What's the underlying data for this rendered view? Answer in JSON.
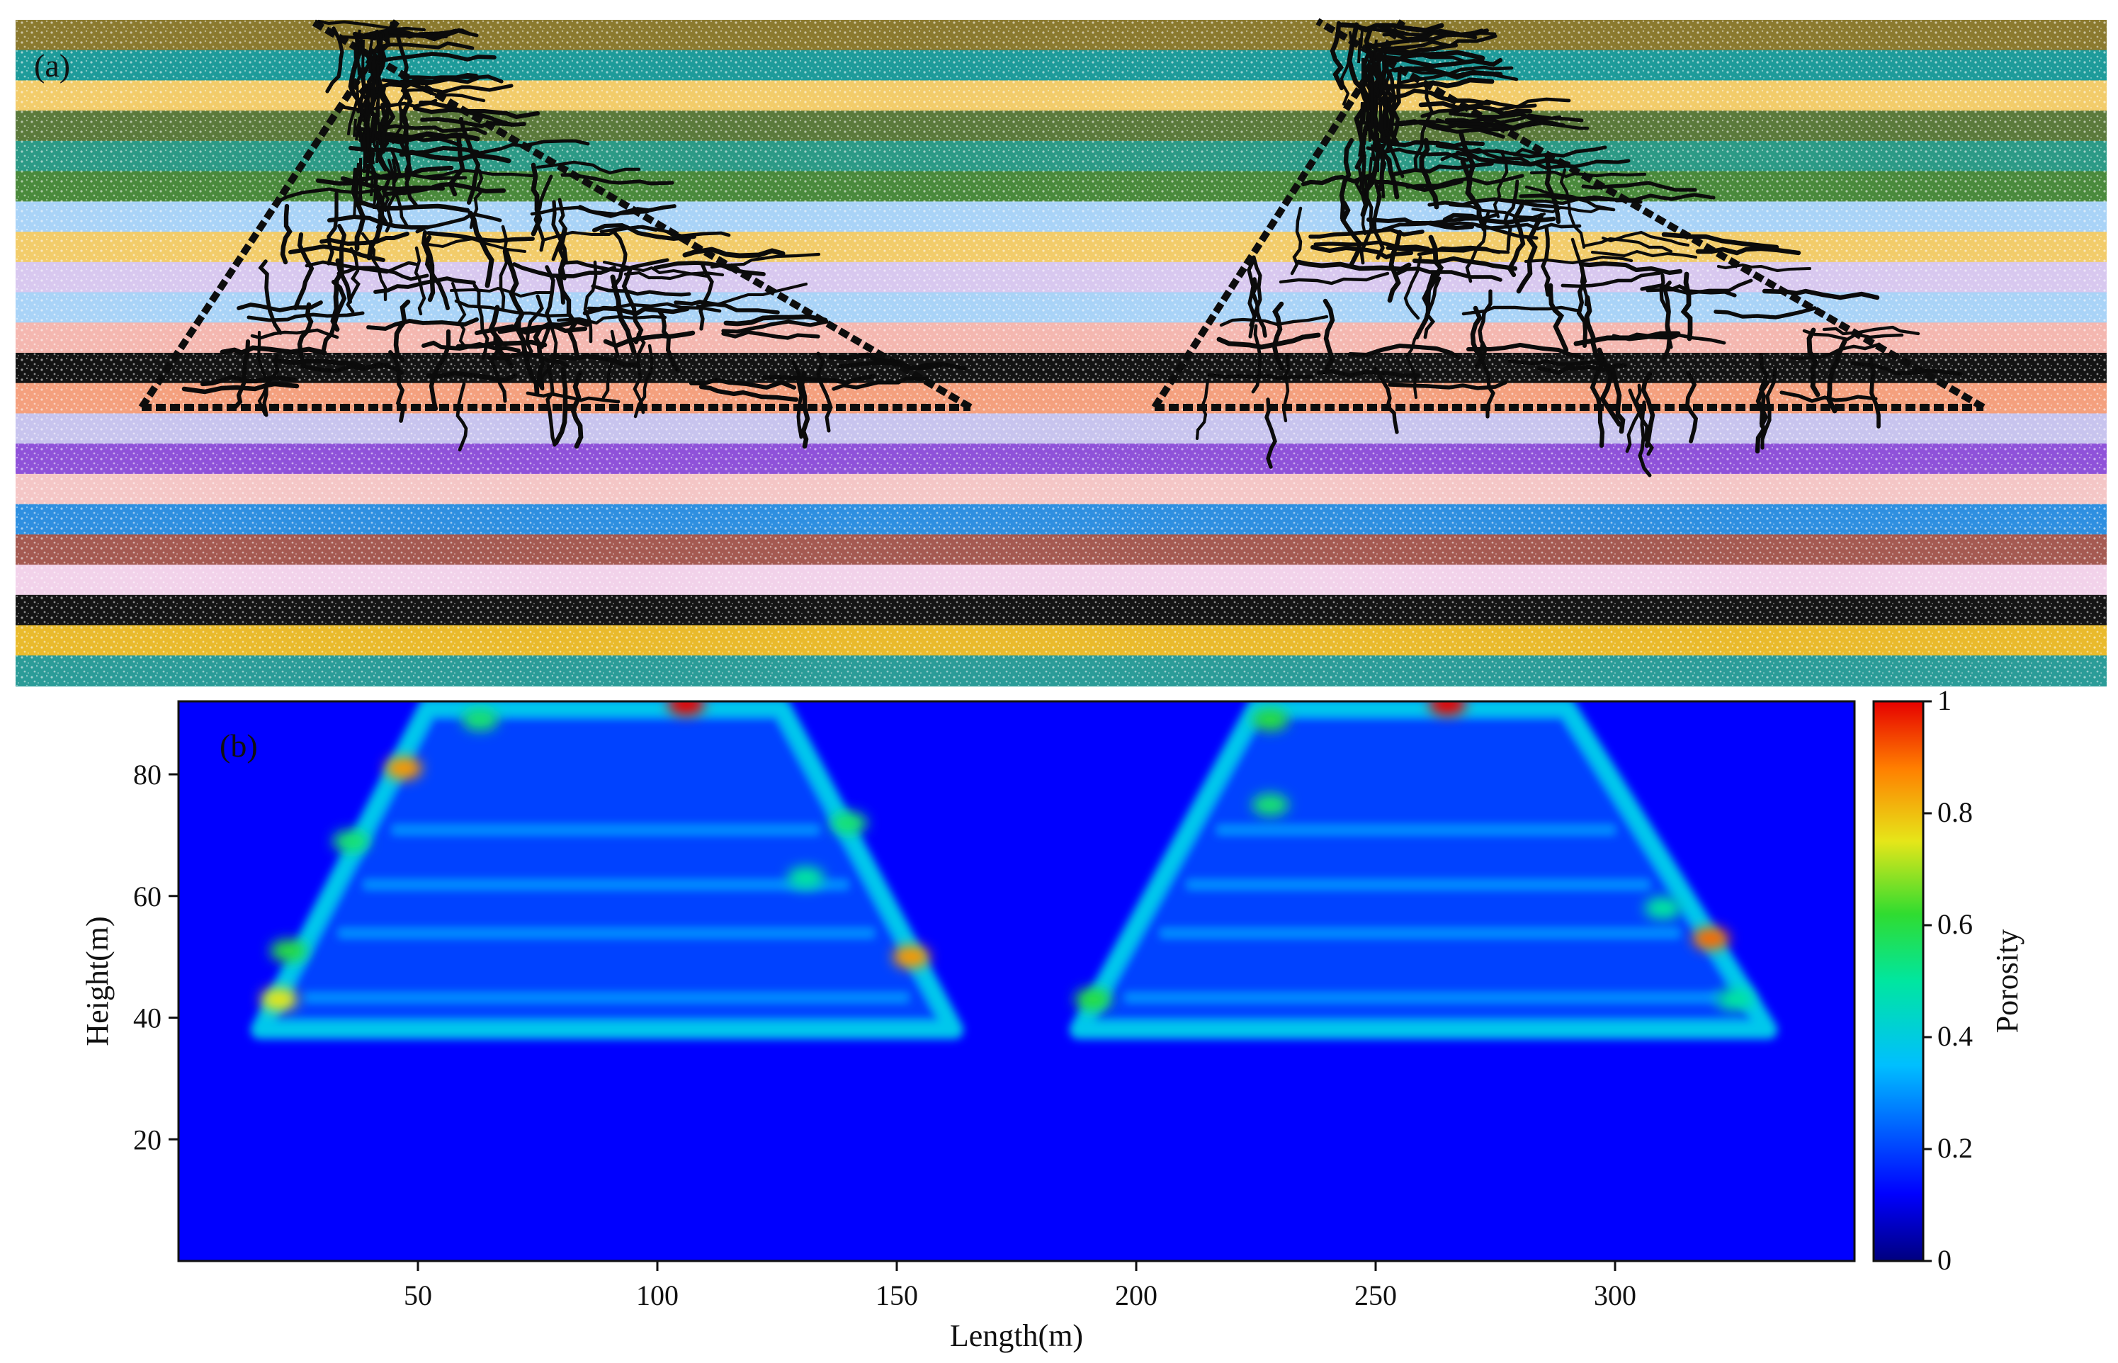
{
  "panels": {
    "a": {
      "label": "(a)"
    },
    "b": {
      "label": "(b)"
    }
  },
  "layer_colors": [
    "#8b7a2f",
    "#1e9b9a",
    "#f2cc6a",
    "#5b7a3b",
    "#2c9a86",
    "#4a8a3c",
    "#a9d3f7",
    "#f2cc6a",
    "#d8c8ef",
    "#a9d3f7",
    "#f4b7b0",
    "#141414",
    "#f4a07e",
    "#c8c4ee",
    "#8f52d9",
    "#f4c6c6",
    "#2f8fe0",
    "#a55a52",
    "#f2d2ea",
    "#151515",
    "#e9ba2c",
    "#2b9c98"
  ],
  "chart_data": {
    "type": "heatmap",
    "xlabel": "Length(m)",
    "ylabel": "Height(m)",
    "colorbar_label": "Porosity",
    "xlim": [
      0,
      350
    ],
    "ylim": [
      0,
      92
    ],
    "x_ticks": [
      50,
      100,
      150,
      200,
      250,
      300
    ],
    "y_ticks": [
      20,
      40,
      60,
      80
    ],
    "colorbar_ticks": [
      "0",
      "0.2",
      "0.4",
      "0.6",
      "0.8",
      "1"
    ],
    "colorbar_range": [
      0,
      1
    ],
    "background_porosity": 0.12,
    "regions": [
      {
        "bottom_x": [
          17,
          162
        ],
        "top_x": [
          52,
          126
        ],
        "y_range": [
          38,
          91
        ]
      },
      {
        "bottom_x": [
          188,
          332
        ],
        "top_x": [
          225,
          290
        ],
        "y_range": [
          38,
          91
        ]
      }
    ],
    "hotspots": [
      {
        "x": 47,
        "y": 81,
        "value": 0.85
      },
      {
        "x": 153,
        "y": 50,
        "value": 0.85
      },
      {
        "x": 320,
        "y": 53,
        "value": 0.9
      },
      {
        "x": 21,
        "y": 43,
        "value": 0.75
      },
      {
        "x": 23,
        "y": 51,
        "value": 0.6
      },
      {
        "x": 36,
        "y": 69,
        "value": 0.55
      },
      {
        "x": 140,
        "y": 72,
        "value": 0.55
      },
      {
        "x": 131,
        "y": 63,
        "value": 0.5
      },
      {
        "x": 191,
        "y": 43,
        "value": 0.6
      },
      {
        "x": 228,
        "y": 89,
        "value": 0.6
      },
      {
        "x": 63,
        "y": 89,
        "value": 0.55
      },
      {
        "x": 228,
        "y": 75,
        "value": 0.55
      },
      {
        "x": 310,
        "y": 58,
        "value": 0.5
      },
      {
        "x": 325,
        "y": 43,
        "value": 0.5
      },
      {
        "x": 106,
        "y": 91.5,
        "value": 1.0
      },
      {
        "x": 265,
        "y": 91.5,
        "value": 1.0
      }
    ]
  }
}
